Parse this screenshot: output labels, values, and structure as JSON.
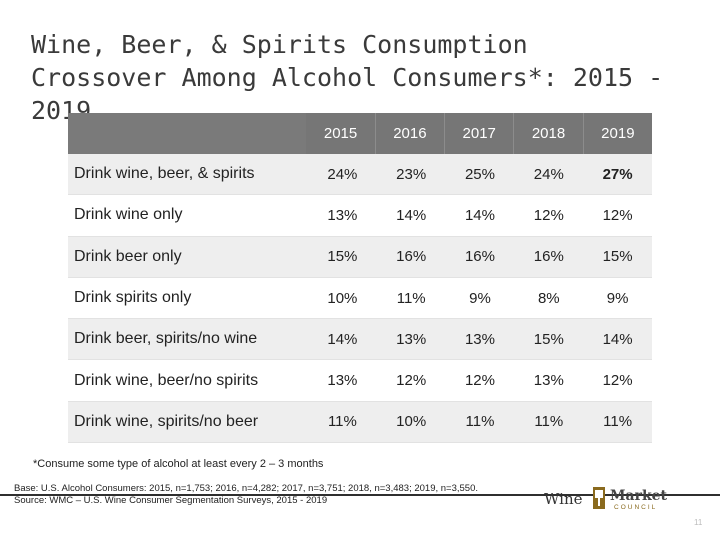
{
  "title": "Wine, Beer, & Spirits Consumption Crossover Among Alcohol Consumers*: 2015 - 2019",
  "table": {
    "years": [
      "2015",
      "2016",
      "2017",
      "2018",
      "2019"
    ],
    "rows": [
      {
        "label": "Drink wine, beer, & spirits",
        "values": [
          "24%",
          "23%",
          "25%",
          "24%",
          "27%"
        ]
      },
      {
        "label": "Drink wine only",
        "values": [
          "13%",
          "14%",
          "14%",
          "12%",
          "12%"
        ]
      },
      {
        "label": "Drink beer only",
        "values": [
          "15%",
          "16%",
          "16%",
          "16%",
          "15%"
        ]
      },
      {
        "label": "Drink spirits only",
        "values": [
          "10%",
          "11%",
          "9%",
          "8%",
          "9%"
        ]
      },
      {
        "label": "Drink beer, spirits/no wine",
        "values": [
          "14%",
          "13%",
          "13%",
          "15%",
          "14%"
        ]
      },
      {
        "label": "Drink wine, beer/no spirits",
        "values": [
          "13%",
          "12%",
          "12%",
          "13%",
          "12%"
        ]
      },
      {
        "label": "Drink wine, spirits/no beer",
        "values": [
          "11%",
          "10%",
          "11%",
          "11%",
          "11%"
        ]
      }
    ]
  },
  "footnote": "*Consume some type of alcohol at least every 2 – 3 months",
  "base_line1": "Base: U.S. Alcohol Consumers: 2015, n=1,753; 2016, n=4,282; 2017, n=3,751; 2018, n=3,483; 2019, n=3,550.",
  "base_line2": "Source: WMC – U.S. Wine Consumer Segmentation Surveys, 2015 - 2019",
  "logo": {
    "wine": "Wine",
    "market": "Market",
    "council": "COUNCIL"
  },
  "page_number": "11",
  "colors": {
    "header_bg": "#767676",
    "stripe": "#eeeeee",
    "divider": "#2f2f2f"
  }
}
